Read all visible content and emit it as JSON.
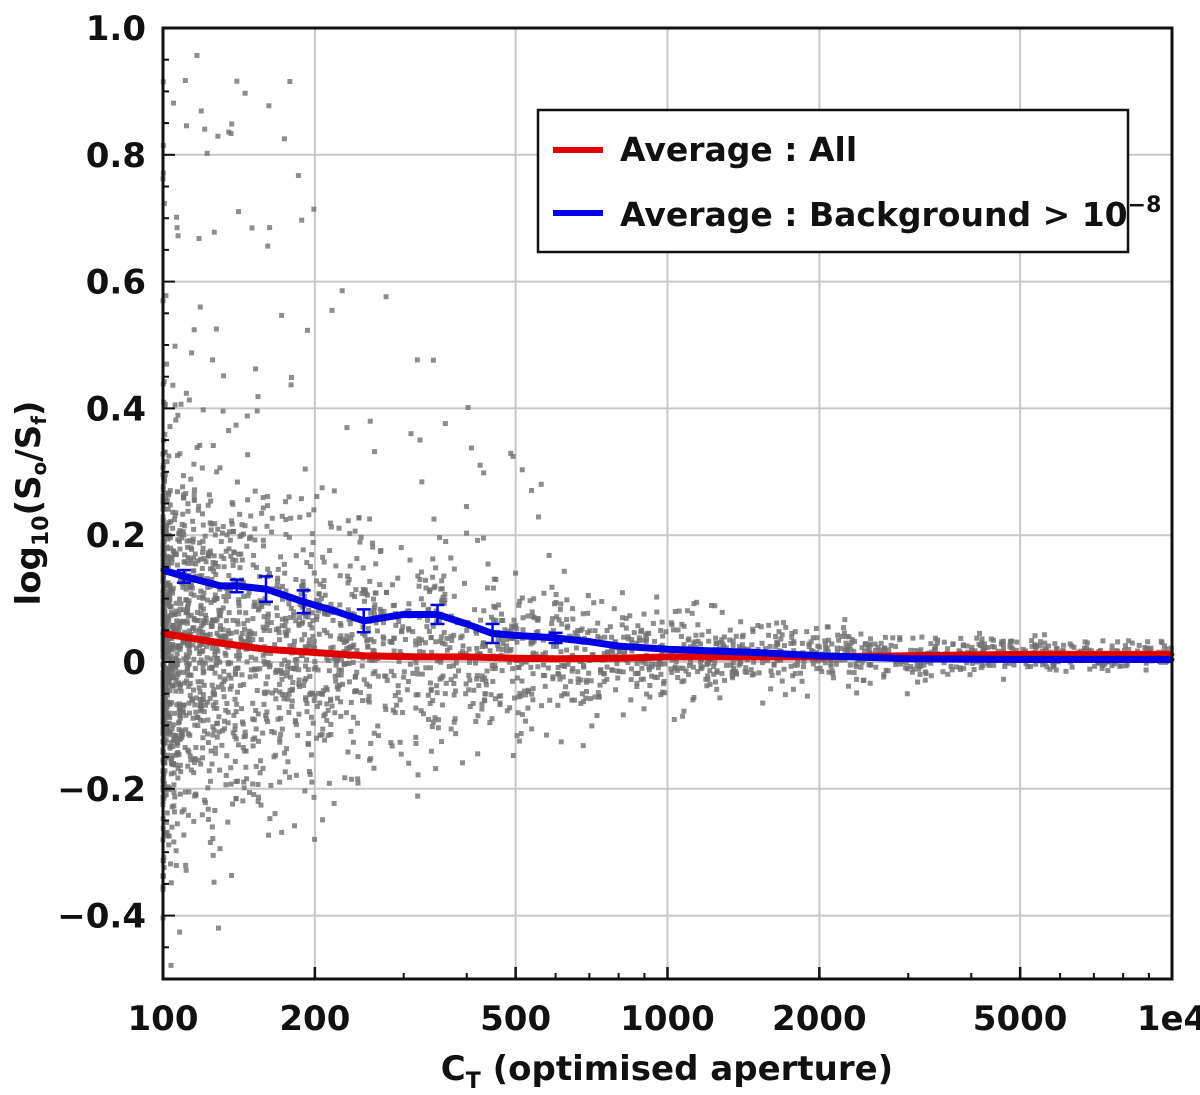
{
  "chart_data": {
    "type": "scatter",
    "title": "",
    "xlabel_main": "C",
    "xlabel_sub": "T",
    "xlabel_rest": " (optimised aperture)",
    "ylabel_prefix": "log",
    "ylabel_base": "10",
    "ylabel_open": "(S",
    "ylabel_s1": "o",
    "ylabel_mid": "/S",
    "ylabel_s2": "f",
    "ylabel_close": ")",
    "xscale": "log",
    "xlim": [
      100,
      10000
    ],
    "ylim": [
      -0.5,
      1.0
    ],
    "grid": true,
    "x_ticks": [
      100,
      200,
      500,
      1000,
      2000,
      5000,
      10000
    ],
    "x_tick_labels": [
      "100",
      "200",
      "500",
      "1000",
      "2000",
      "5000",
      "1e4"
    ],
    "y_ticks": [
      1.0,
      0.8,
      0.6,
      0.4,
      0.2,
      0,
      -0.2,
      -0.4
    ],
    "y_tick_labels": [
      "1.0",
      "0.8",
      "0.6",
      "0.4",
      "0.2",
      "0",
      "−0.2",
      "−0.4"
    ],
    "legend_position": "top-right",
    "legend": [
      {
        "label": "Average : All",
        "color": "#e00000"
      },
      {
        "label": "Average : Background > 10",
        "sup": "−8",
        "color": "#0000e6"
      }
    ],
    "scatter_color": "#707070",
    "series": [
      {
        "name": "Average : All",
        "color": "#e00000",
        "x": [
          100,
          130,
          160,
          200,
          250,
          320,
          400,
          500,
          600,
          800,
          1000,
          1500,
          2000,
          3000,
          5000,
          10000
        ],
        "y": [
          0.045,
          0.03,
          0.02,
          0.015,
          0.01,
          0.008,
          0.008,
          0.006,
          0.005,
          0.006,
          0.008,
          0.008,
          0.008,
          0.01,
          0.012,
          0.012
        ]
      },
      {
        "name": "Average : Background > 10^-8",
        "color": "#0000e6",
        "x": [
          100,
          110,
          130,
          140,
          160,
          190,
          220,
          250,
          300,
          350,
          400,
          450,
          500,
          600,
          700,
          800,
          1000,
          1500,
          2000,
          3000,
          5000,
          10000
        ],
        "y": [
          0.145,
          0.135,
          0.12,
          0.12,
          0.115,
          0.095,
          0.08,
          0.065,
          0.075,
          0.075,
          0.06,
          0.045,
          0.042,
          0.038,
          0.032,
          0.025,
          0.02,
          0.015,
          0.01,
          0.005,
          0.004,
          0.004
        ],
        "error_x": [
          110,
          140,
          160,
          190,
          250,
          350,
          450,
          600
        ],
        "error_y": [
          0.135,
          0.12,
          0.115,
          0.095,
          0.065,
          0.075,
          0.045,
          0.038
        ],
        "error_size": [
          0.01,
          0.01,
          0.02,
          0.018,
          0.018,
          0.015,
          0.015,
          0.008
        ]
      }
    ]
  }
}
